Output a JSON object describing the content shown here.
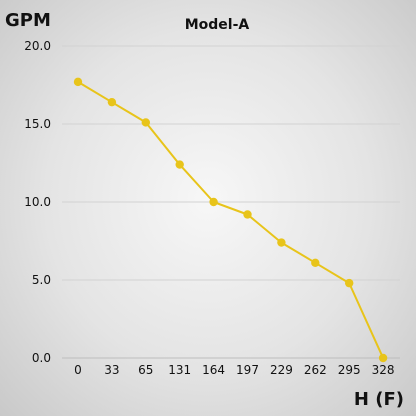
{
  "chart_data": {
    "type": "line",
    "title": "Model-A",
    "ylabel": "GPM",
    "xlabel": "H (F)",
    "categories": [
      "0",
      "33",
      "65",
      "131",
      "164",
      "197",
      "229",
      "262",
      "295",
      "328"
    ],
    "series": [
      {
        "values": [
          17.7,
          16.4,
          15.1,
          12.4,
          10.0,
          9.2,
          7.4,
          6.1,
          4.8,
          0.0
        ]
      }
    ],
    "ylim": [
      0,
      20
    ],
    "yticks": [
      "0.0",
      "5.0",
      "10.0",
      "15.0",
      "20.0"
    ],
    "grid": true,
    "legend": "none",
    "colors": {
      "series": "#e8c41a",
      "grid": "#d2d2d2"
    }
  }
}
